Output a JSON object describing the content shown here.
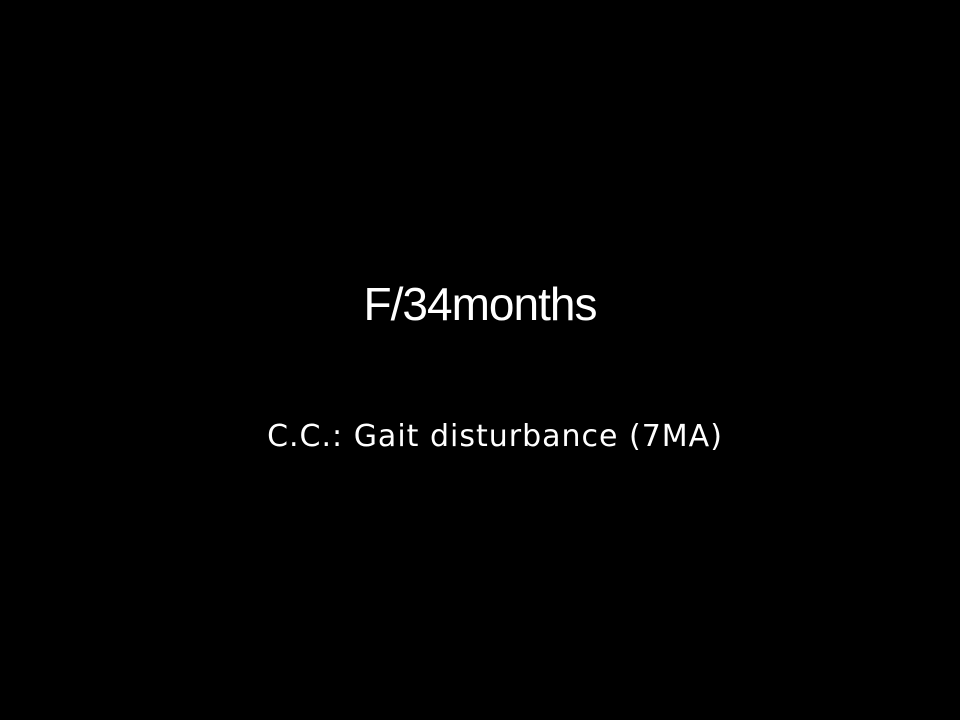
{
  "slide": {
    "title": "F/34months",
    "subtitle": "C.C.: Gait disturbance (7MA)",
    "background_color": "#000000",
    "text_color": "#ffffff"
  }
}
